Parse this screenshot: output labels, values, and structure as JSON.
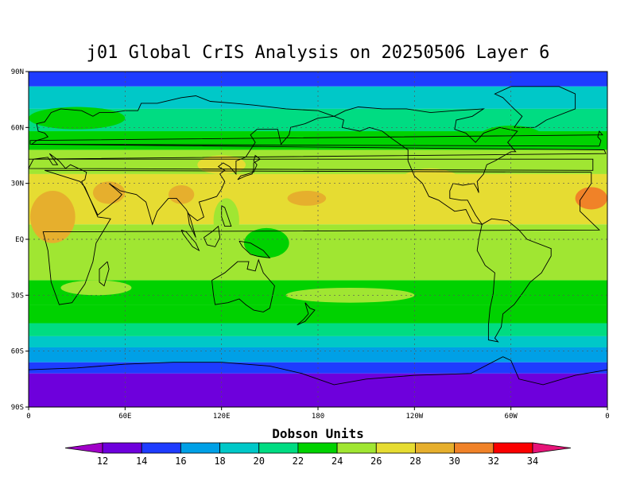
{
  "title": "j01 Global CrIS Analysis on 20250506 Layer 6",
  "colorbar": {
    "title": "Dobson Units",
    "ticks": [
      "12",
      "14",
      "16",
      "18",
      "20",
      "22",
      "24",
      "26",
      "28",
      "30",
      "32",
      "34"
    ],
    "colors": [
      "#a000c8",
      "#6e00dc",
      "#1e3cff",
      "#00a0e6",
      "#00c8c8",
      "#00dc82",
      "#00d200",
      "#a0e632",
      "#e6dc32",
      "#e6af2d",
      "#f08228",
      "#fa0000",
      "#e61478"
    ]
  },
  "chart_data": {
    "type": "heatmap",
    "title": "j01 Global CrIS Analysis on 20250506 Layer 6",
    "xlabel": "",
    "ylabel": "",
    "x_ticks": [
      "0",
      "60E",
      "120E",
      "180",
      "120W",
      "60W",
      "0"
    ],
    "y_ticks": [
      "90N",
      "60N",
      "30N",
      "EQ",
      "30S",
      "60S",
      "90S"
    ],
    "xlim": [
      0,
      360
    ],
    "ylim": [
      -90,
      90
    ],
    "grid": true,
    "units": "Dobson Units",
    "color_levels": [
      12,
      14,
      16,
      18,
      20,
      22,
      24,
      26,
      28,
      30,
      32,
      34
    ],
    "zonal_bands": [
      {
        "lat_from": 90,
        "lat_to": 82,
        "value": 15
      },
      {
        "lat_from": 82,
        "lat_to": 70,
        "value": 18
      },
      {
        "lat_from": 70,
        "lat_to": 58,
        "value": 21
      },
      {
        "lat_from": 58,
        "lat_to": 48,
        "value": 23
      },
      {
        "lat_from": 48,
        "lat_to": 35,
        "value": 25
      },
      {
        "lat_from": 35,
        "lat_to": 8,
        "value": 27
      },
      {
        "lat_from": 8,
        "lat_to": -22,
        "value": 25
      },
      {
        "lat_from": -22,
        "lat_to": -35,
        "value": 23
      },
      {
        "lat_from": -35,
        "lat_to": -45,
        "value": 22
      },
      {
        "lat_from": -45,
        "lat_to": -52,
        "value": 20
      },
      {
        "lat_from": -52,
        "lat_to": -58,
        "value": 18
      },
      {
        "lat_from": -58,
        "lat_to": -66,
        "value": 16
      },
      {
        "lat_from": -66,
        "lat_to": -72,
        "value": 14
      },
      {
        "lat_from": -72,
        "lat_to": -90,
        "value": 12
      }
    ],
    "blobs": [
      {
        "lon": 15,
        "lat": 12,
        "rlon": 14,
        "rlat": 14,
        "value": 29
      },
      {
        "lon": 50,
        "lat": 25,
        "rlon": 10,
        "rlat": 6,
        "value": 29
      },
      {
        "lon": 95,
        "lat": 24,
        "rlon": 8,
        "rlat": 5,
        "value": 28
      },
      {
        "lon": 173,
        "lat": 22,
        "rlon": 12,
        "rlat": 4,
        "value": 29
      },
      {
        "lon": 350,
        "lat": 22,
        "rlon": 10,
        "rlat": 6,
        "value": 31
      },
      {
        "lon": 123,
        "lat": 10,
        "rlon": 8,
        "rlat": 12,
        "value": 24
      },
      {
        "lon": 148,
        "lat": -2,
        "rlon": 14,
        "rlat": 8,
        "value": 23
      },
      {
        "lon": 42,
        "lat": -26,
        "rlon": 22,
        "rlat": 4,
        "value": 24
      },
      {
        "lon": 200,
        "lat": -30,
        "rlon": 40,
        "rlat": 4,
        "value": 24
      },
      {
        "lon": 30,
        "lat": 65,
        "rlon": 30,
        "rlat": 6,
        "value": 22
      },
      {
        "lon": 300,
        "lat": 55,
        "rlon": 20,
        "rlat": 6,
        "value": 22
      },
      {
        "lon": 120,
        "lat": 40,
        "rlon": 15,
        "rlat": 5,
        "value": 27
      },
      {
        "lon": 250,
        "lat": 30,
        "rlon": 20,
        "rlat": 8,
        "value": 26
      }
    ]
  },
  "icons": {
    "colorbar_left_arrow": "triangle-left",
    "colorbar_right_arrow": "triangle-right"
  }
}
